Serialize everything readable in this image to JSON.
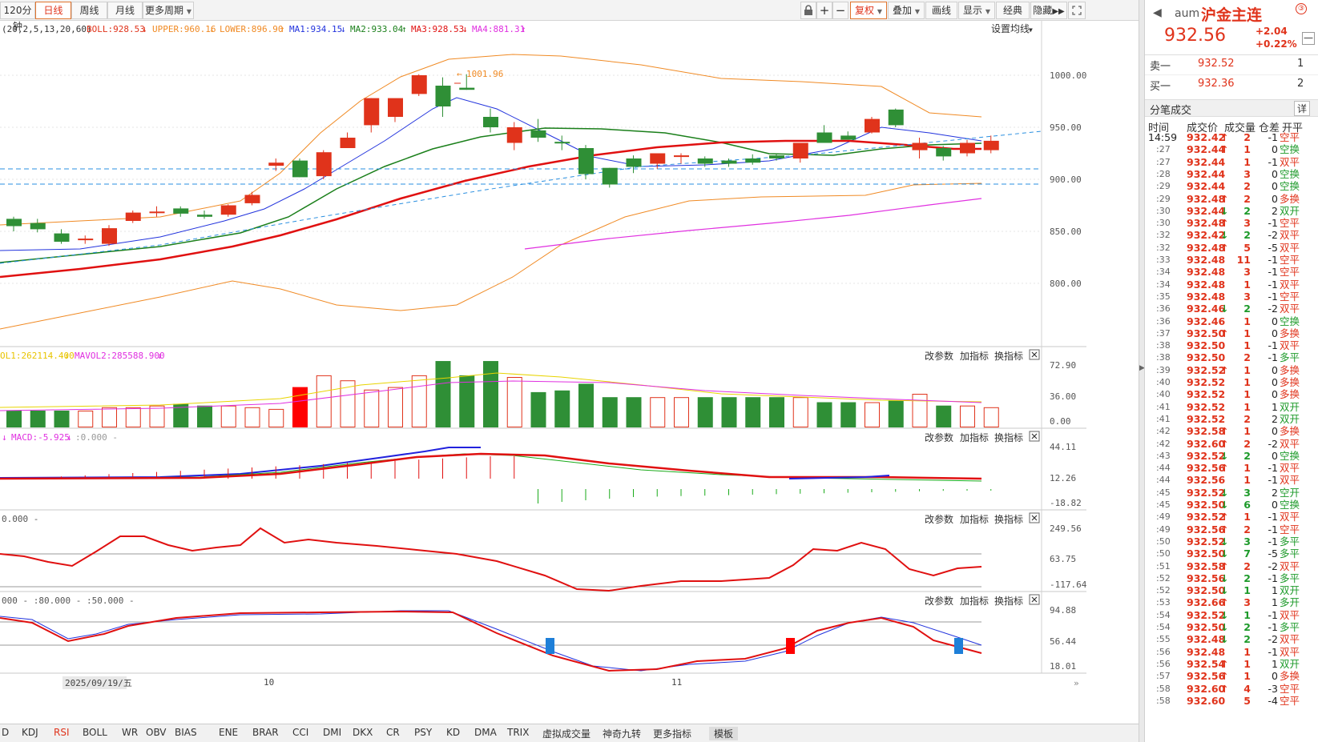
{
  "toolbar": {
    "periods": [
      "120分钟",
      "日线",
      "周线",
      "月线",
      "更多周期"
    ],
    "active_period": "日线",
    "right_buttons": [
      "复权",
      "叠加",
      "画线",
      "显示",
      "经典",
      "隐藏"
    ]
  },
  "main_legend": {
    "params": "(20,2,5,13,20,60)",
    "boll": "BOLL:928.53",
    "upper": "UPPER:960.16",
    "lower": "LOWER:896.90",
    "ma1": "MA1:934.15",
    "ma2": "MA2:933.04",
    "ma3": "MA3:928.53",
    "ma4": "MA4:881.31",
    "settings": "设置均线",
    "annotation": "1001.96",
    "y_ticks": [
      "1000.00",
      "950.00",
      "900.00",
      "850.00",
      "800.00"
    ],
    "x_ticks": [
      "2025/09/19/五",
      "10",
      "11"
    ]
  },
  "vol_panel": {
    "legend1": "OL1:262114.400",
    "legend2": "MAVOL2:285588.900",
    "y_ticks": [
      "72.90",
      "36.00",
      "0.00"
    ],
    "actions": [
      "改参数",
      "加指标",
      "换指标"
    ]
  },
  "macd_panel": {
    "legend1": "MACD:-5.925",
    "legend2": ":0.000 -",
    "y_ticks": [
      "44.11",
      "12.26",
      "-18.82"
    ],
    "actions": [
      "改参数",
      "加指标",
      "换指标"
    ]
  },
  "cci_panel": {
    "legend": "0.000 -",
    "y_ticks": [
      "249.56",
      "63.75",
      "-117.64"
    ],
    "actions": [
      "改参数",
      "加指标",
      "换指标"
    ]
  },
  "rsi_panel": {
    "legend": "000 - :80.000 - :50.000 -",
    "y_ticks": [
      "94.88",
      "56.44",
      "18.01"
    ],
    "actions": [
      "改参数",
      "加指标",
      "换指标"
    ]
  },
  "bottom_tabs": [
    "D",
    "KDJ",
    "RSI",
    "BOLL",
    "WR",
    "OBV",
    "BIAS",
    "ENE",
    "BRAR",
    "CCI",
    "DMI",
    "DKX",
    "CR",
    "PSY",
    "KD",
    "DMA",
    "TRIX",
    "虚拟成交量",
    "神奇九转",
    "更多指标",
    "模板"
  ],
  "active_tab": "RSI",
  "colors": {
    "up": "#e0331b",
    "down": "#2f8f36",
    "boll_band": "#f08a24",
    "ma1": "#2233dd",
    "ma2": "#1a7f1a",
    "ma3": "#e01010",
    "ma4": "#e030e0",
    "dash": "#2a8fe0"
  },
  "right_panel": {
    "code": "aum",
    "name": "沪金主连",
    "price": "932.56",
    "change": "+2.04",
    "change_pct": "+0.22%",
    "sell1": {
      "label": "卖一",
      "price": "932.52",
      "vol": "1"
    },
    "buy1": {
      "label": "买一",
      "price": "932.36",
      "vol": "2"
    },
    "trades_title": "分笔成交",
    "detail": "详",
    "headers": [
      "时间",
      "成交价",
      "成交量",
      "仓差",
      "开平"
    ],
    "trades": [
      {
        "t": "14:59",
        "p": "932.42",
        "a": "up",
        "v": "2",
        "d": "-1",
        "k": "空平"
      },
      {
        "t": ":27",
        "p": "932.44",
        "a": "up",
        "v": "1",
        "d": "0",
        "k": "空换"
      },
      {
        "t": ":27",
        "p": "932.44",
        "a": "",
        "v": "1",
        "d": "-1",
        "k": "双平"
      },
      {
        "t": ":28",
        "p": "932.44",
        "a": "",
        "v": "3",
        "d": "0",
        "k": "空换"
      },
      {
        "t": ":29",
        "p": "932.44",
        "a": "",
        "v": "2",
        "d": "0",
        "k": "空换"
      },
      {
        "t": ":29",
        "p": "932.48",
        "a": "up",
        "v": "2",
        "d": "0",
        "k": "多换"
      },
      {
        "t": ":30",
        "p": "932.44",
        "a": "dn",
        "v": "2",
        "d": "2",
        "k": "双开"
      },
      {
        "t": ":30",
        "p": "932.48",
        "a": "up",
        "v": "3",
        "d": "-1",
        "k": "空平"
      },
      {
        "t": ":32",
        "p": "932.42",
        "a": "dn",
        "v": "2",
        "d": "-2",
        "k": "双平"
      },
      {
        "t": ":32",
        "p": "932.48",
        "a": "up",
        "v": "5",
        "d": "-5",
        "k": "双平"
      },
      {
        "t": ":33",
        "p": "932.48",
        "a": "",
        "v": "11",
        "d": "-1",
        "k": "空平"
      },
      {
        "t": ":34",
        "p": "932.48",
        "a": "",
        "v": "3",
        "d": "-1",
        "k": "空平"
      },
      {
        "t": ":34",
        "p": "932.48",
        "a": "",
        "v": "1",
        "d": "-1",
        "k": "双平"
      },
      {
        "t": ":35",
        "p": "932.48",
        "a": "",
        "v": "3",
        "d": "-1",
        "k": "空平"
      },
      {
        "t": ":36",
        "p": "932.46",
        "a": "dn",
        "v": "2",
        "d": "-2",
        "k": "双平"
      },
      {
        "t": ":36",
        "p": "932.46",
        "a": "",
        "v": "1",
        "d": "0",
        "k": "空换"
      },
      {
        "t": ":37",
        "p": "932.50",
        "a": "up",
        "v": "1",
        "d": "0",
        "k": "多换"
      },
      {
        "t": ":38",
        "p": "932.50",
        "a": "",
        "v": "1",
        "d": "-1",
        "k": "双平"
      },
      {
        "t": ":38",
        "p": "932.50",
        "a": "",
        "v": "2",
        "d": "-1",
        "k": "多平"
      },
      {
        "t": ":39",
        "p": "932.52",
        "a": "up",
        "v": "1",
        "d": "0",
        "k": "多换"
      },
      {
        "t": ":40",
        "p": "932.52",
        "a": "",
        "v": "1",
        "d": "0",
        "k": "多换"
      },
      {
        "t": ":40",
        "p": "932.52",
        "a": "",
        "v": "1",
        "d": "0",
        "k": "多换"
      },
      {
        "t": ":41",
        "p": "932.52",
        "a": "",
        "v": "1",
        "d": "1",
        "k": "双开"
      },
      {
        "t": ":41",
        "p": "932.52",
        "a": "",
        "v": "2",
        "d": "2",
        "k": "双开"
      },
      {
        "t": ":42",
        "p": "932.58",
        "a": "up",
        "v": "1",
        "d": "0",
        "k": "多换"
      },
      {
        "t": ":42",
        "p": "932.60",
        "a": "up",
        "v": "2",
        "d": "-2",
        "k": "双平"
      },
      {
        "t": ":43",
        "p": "932.52",
        "a": "dn",
        "v": "2",
        "d": "0",
        "k": "空换"
      },
      {
        "t": ":44",
        "p": "932.56",
        "a": "up",
        "v": "1",
        "d": "-1",
        "k": "双平"
      },
      {
        "t": ":44",
        "p": "932.56",
        "a": "",
        "v": "1",
        "d": "-1",
        "k": "双平"
      },
      {
        "t": ":45",
        "p": "932.52",
        "a": "dn",
        "v": "3",
        "d": "2",
        "k": "空开"
      },
      {
        "t": ":45",
        "p": "932.50",
        "a": "dn",
        "v": "6",
        "d": "0",
        "k": "空换"
      },
      {
        "t": ":49",
        "p": "932.52",
        "a": "up",
        "v": "1",
        "d": "-1",
        "k": "双平"
      },
      {
        "t": ":49",
        "p": "932.56",
        "a": "up",
        "v": "2",
        "d": "-1",
        "k": "空平"
      },
      {
        "t": ":50",
        "p": "932.52",
        "a": "dn",
        "v": "3",
        "d": "-1",
        "k": "多平"
      },
      {
        "t": ":50",
        "p": "932.50",
        "a": "dn",
        "v": "7",
        "d": "-5",
        "k": "多平"
      },
      {
        "t": ":51",
        "p": "932.58",
        "a": "up",
        "v": "2",
        "d": "-2",
        "k": "双平"
      },
      {
        "t": ":52",
        "p": "932.56",
        "a": "dn",
        "v": "2",
        "d": "-1",
        "k": "多平"
      },
      {
        "t": ":52",
        "p": "932.50",
        "a": "dn",
        "v": "1",
        "d": "1",
        "k": "双开"
      },
      {
        "t": ":53",
        "p": "932.66",
        "a": "up",
        "v": "3",
        "d": "1",
        "k": "多开"
      },
      {
        "t": ":54",
        "p": "932.52",
        "a": "dn",
        "v": "1",
        "d": "-1",
        "k": "双平"
      },
      {
        "t": ":54",
        "p": "932.50",
        "a": "dn",
        "v": "2",
        "d": "-1",
        "k": "多平"
      },
      {
        "t": ":55",
        "p": "932.48",
        "a": "dn",
        "v": "2",
        "d": "-2",
        "k": "双平"
      },
      {
        "t": ":56",
        "p": "932.48",
        "a": "",
        "v": "1",
        "d": "-1",
        "k": "双平"
      },
      {
        "t": ":56",
        "p": "932.54",
        "a": "up",
        "v": "1",
        "d": "1",
        "k": "双开"
      },
      {
        "t": ":57",
        "p": "932.56",
        "a": "up",
        "v": "1",
        "d": "0",
        "k": "多换"
      },
      {
        "t": ":58",
        "p": "932.60",
        "a": "up",
        "v": "4",
        "d": "-3",
        "k": "空平"
      },
      {
        "t": ":58",
        "p": "932.60",
        "a": "",
        "v": "5",
        "d": "-4",
        "k": "空平"
      }
    ]
  }
}
